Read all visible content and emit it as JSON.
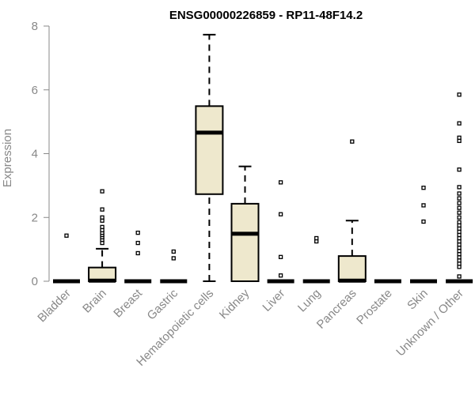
{
  "chart_data": {
    "type": "boxplot",
    "title": "ENSG00000226859 - RP11-48F14.2",
    "ylabel": "Expression",
    "xlabel": "",
    "ylim": [
      0,
      8
    ],
    "yticks": [
      0,
      2,
      4,
      6,
      8
    ],
    "grid": false,
    "box_fill": "#EEE8CD",
    "categories": [
      "Bladder",
      "Brain",
      "Breast",
      "Gastric",
      "Hematopoietic cells",
      "Kidney",
      "Liver",
      "Lung",
      "Pancreas",
      "Prostate",
      "Skin",
      "Unknown / Other"
    ],
    "boxes": [
      {
        "min": 0,
        "q1": 0,
        "median": 0,
        "q3": 0,
        "max": 0,
        "outliers": [
          1.43
        ]
      },
      {
        "min": 0,
        "q1": 0,
        "median": 0.02,
        "q3": 0.43,
        "max": 1.02,
        "outliers": [
          1.2,
          1.3,
          1.38,
          1.45,
          1.52,
          1.6,
          1.7,
          1.9,
          2.0,
          2.25,
          2.82
        ]
      },
      {
        "min": 0,
        "q1": 0,
        "median": 0,
        "q3": 0,
        "max": 0,
        "outliers": [
          0.88,
          1.2,
          1.52
        ]
      },
      {
        "min": 0,
        "q1": 0,
        "median": 0,
        "q3": 0,
        "max": 0,
        "outliers": [
          0.72,
          0.93
        ]
      },
      {
        "min": 0,
        "q1": 2.73,
        "median": 4.66,
        "q3": 5.49,
        "max": 7.73,
        "outliers": []
      },
      {
        "min": 0,
        "q1": 0,
        "median": 1.49,
        "q3": 2.43,
        "max": 3.6,
        "outliers": []
      },
      {
        "min": 0,
        "q1": 0,
        "median": 0,
        "q3": 0,
        "max": 0,
        "outliers": [
          0.18,
          0.76,
          2.1,
          3.1
        ]
      },
      {
        "min": 0,
        "q1": 0,
        "median": 0,
        "q3": 0,
        "max": 0,
        "outliers": [
          1.25,
          1.35
        ]
      },
      {
        "min": 0,
        "q1": 0,
        "median": 0.02,
        "q3": 0.79,
        "max": 1.9,
        "outliers": [
          4.38
        ]
      },
      {
        "min": 0,
        "q1": 0,
        "median": 0,
        "q3": 0,
        "max": 0,
        "outliers": []
      },
      {
        "min": 0,
        "q1": 0,
        "median": 0,
        "q3": 0,
        "max": 0,
        "outliers": [
          1.87,
          2.38,
          2.93
        ]
      },
      {
        "min": 0,
        "q1": 0,
        "median": 0,
        "q3": 0,
        "max": 0,
        "outliers": [
          0.15,
          0.45,
          0.55,
          0.65,
          0.75,
          0.85,
          0.95,
          1.05,
          1.15,
          1.25,
          1.35,
          1.45,
          1.55,
          1.65,
          1.75,
          1.85,
          2.0,
          2.15,
          2.3,
          2.45,
          2.6,
          2.75,
          2.95,
          3.5,
          4.4,
          4.5,
          4.95,
          5.85
        ]
      }
    ]
  }
}
